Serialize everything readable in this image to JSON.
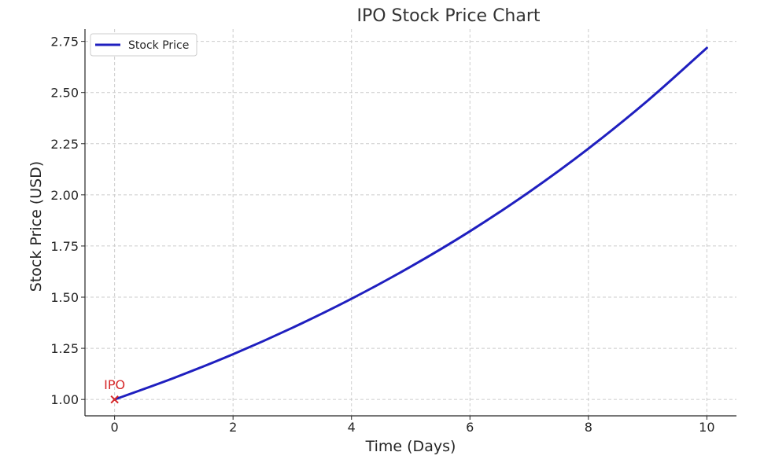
{
  "chart_data": {
    "type": "line",
    "title": "IPO Stock Price Chart",
    "xlabel": "Time (Days)",
    "ylabel": "Stock Price (USD)",
    "xlim": [
      -0.5,
      10.5
    ],
    "ylim": [
      0.92,
      2.81
    ],
    "xticks": [
      0,
      2,
      4,
      6,
      8,
      10
    ],
    "xtick_labels": [
      "0",
      "2",
      "4",
      "6",
      "8",
      "10"
    ],
    "yticks": [
      1.0,
      1.25,
      1.5,
      1.75,
      2.0,
      2.25,
      2.5,
      2.75
    ],
    "ytick_labels": [
      "1.00",
      "1.25",
      "1.50",
      "1.75",
      "2.00",
      "2.25",
      "2.50",
      "2.75"
    ],
    "grid": true,
    "legend_position": "top-left",
    "series": [
      {
        "name": "Stock Price",
        "color": "#1f1fbf",
        "x": [
          0,
          1,
          2,
          3,
          4,
          5,
          6,
          7,
          8,
          9,
          10
        ],
        "y": [
          1.0,
          1.105,
          1.221,
          1.35,
          1.492,
          1.649,
          1.822,
          2.014,
          2.226,
          2.46,
          2.718
        ]
      }
    ],
    "annotations": [
      {
        "marker": "x",
        "x": 0,
        "y": 1.0,
        "text": "IPO",
        "color": "#d62728"
      }
    ]
  }
}
